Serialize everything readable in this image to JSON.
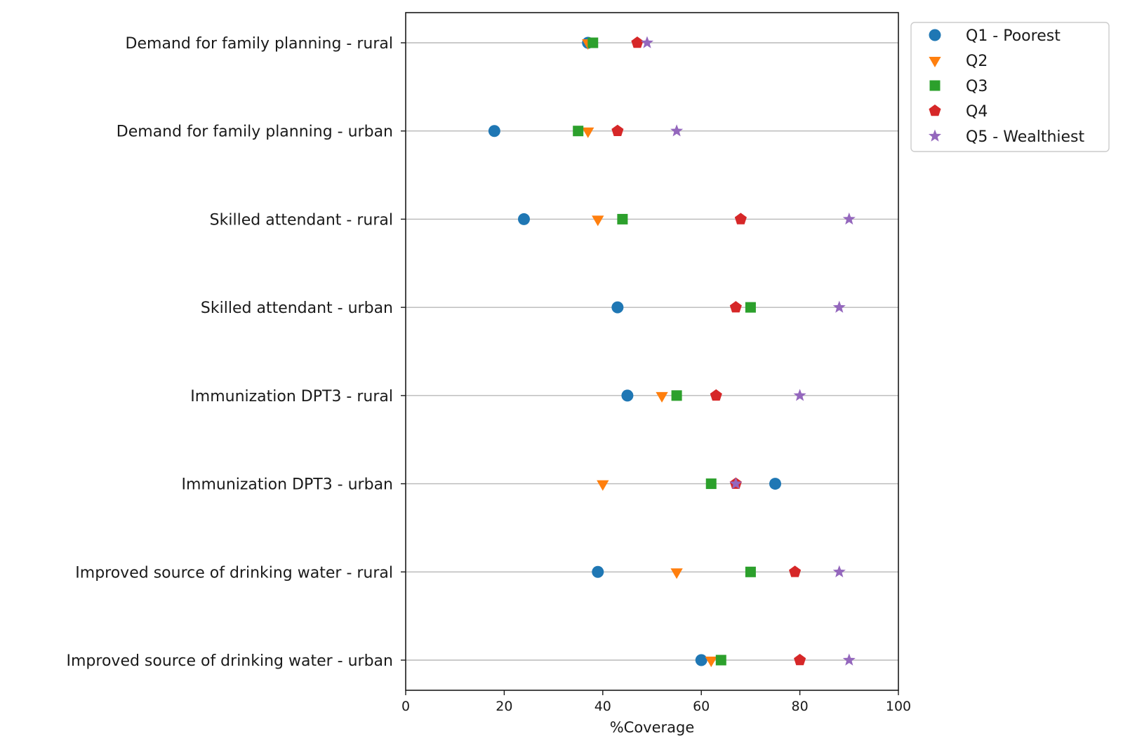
{
  "chart_data": {
    "type": "scatter",
    "categories": [
      "Demand for family planning - rural",
      "Demand for family planning - urban",
      "Skilled attendant - rural",
      "Skilled attendant - urban",
      "Immunization DPT3 - rural",
      "Immunization DPT3 - urban",
      "Improved source of drinking water - rural",
      "Improved source of drinking water - urban"
    ],
    "series": [
      {
        "name": "Q1 - Poorest",
        "marker": "circle",
        "color": "#1f77b4",
        "values": [
          37,
          18,
          24,
          43,
          45,
          75,
          39,
          60
        ]
      },
      {
        "name": "Q2",
        "marker": "triangle-down",
        "color": "#ff7f0e",
        "values": [
          37,
          37,
          39,
          null,
          52,
          40,
          55,
          62
        ]
      },
      {
        "name": "Q3",
        "marker": "square",
        "color": "#2ca02c",
        "values": [
          38,
          35,
          44,
          70,
          55,
          62,
          70,
          64
        ]
      },
      {
        "name": "Q4",
        "marker": "pentagon",
        "color": "#d62728",
        "values": [
          47,
          43,
          68,
          67,
          63,
          67,
          79,
          80
        ]
      },
      {
        "name": "Q5 - Wealthiest",
        "marker": "star",
        "color": "#9467bd",
        "values": [
          49,
          55,
          90,
          88,
          80,
          67,
          88,
          90
        ]
      }
    ],
    "xlabel": "%Coverage",
    "ylabel": "",
    "xlim": [
      0,
      100
    ],
    "xticks": [
      0,
      20,
      40,
      60,
      80,
      100
    ],
    "grid": "horizontal lines at each category",
    "legend_position": "upper right, outside plot"
  }
}
